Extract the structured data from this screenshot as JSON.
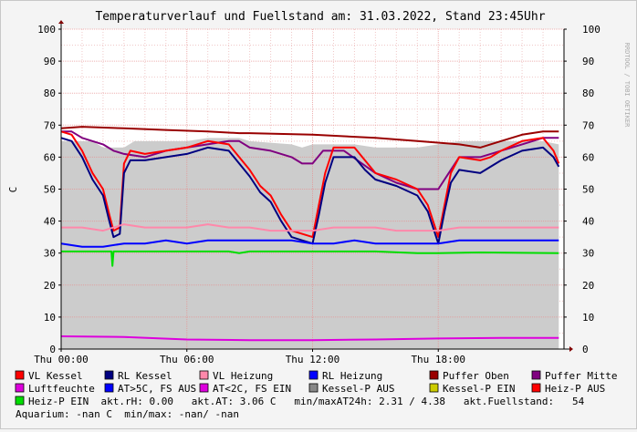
{
  "chart_data": {
    "type": "area",
    "title": "Temperaturverlauf und Fuellstand am: 31.03.2022, Stand 23:45Uhr",
    "watermark": "RRDTOOL / TOBI OETIKER",
    "ylabel": "C",
    "ylim": [
      0,
      100
    ],
    "xlim": [
      0,
      24
    ],
    "y_ticks": [
      0,
      10,
      20,
      30,
      40,
      50,
      60,
      70,
      80,
      90,
      100
    ],
    "x_ticks": [
      {
        "x": 0,
        "label": "Thu 00:00"
      },
      {
        "x": 6,
        "label": "Thu 06:00"
      },
      {
        "x": 12,
        "label": "Thu 12:00"
      },
      {
        "x": 18,
        "label": "Thu 18:00"
      }
    ],
    "grid": true,
    "legend_position": "bottom",
    "series": [
      {
        "name": "Kessel-P AUS",
        "kind": "area",
        "color": "#cccccc",
        "points": [
          [
            0,
            65
          ],
          [
            1.5,
            65
          ],
          [
            2,
            63
          ],
          [
            3,
            63
          ],
          [
            3.5,
            65
          ],
          [
            6,
            65
          ],
          [
            7,
            66
          ],
          [
            8.5,
            66
          ],
          [
            9,
            65
          ],
          [
            11,
            64
          ],
          [
            11.5,
            63
          ],
          [
            12,
            64
          ],
          [
            13,
            64
          ],
          [
            14,
            64
          ],
          [
            15,
            63
          ],
          [
            16,
            63
          ],
          [
            17,
            63
          ],
          [
            18,
            64
          ],
          [
            19,
            65
          ],
          [
            20,
            65
          ],
          [
            21,
            65
          ],
          [
            22,
            65
          ],
          [
            23,
            65
          ],
          [
            23.75,
            64
          ]
        ]
      },
      {
        "name": "Puffer Oben",
        "kind": "line",
        "color": "#990000",
        "points": [
          [
            0,
            69
          ],
          [
            1,
            69.5
          ],
          [
            3,
            69
          ],
          [
            5,
            68.5
          ],
          [
            7,
            68
          ],
          [
            8.5,
            67.5
          ],
          [
            9,
            67.5
          ],
          [
            12,
            67
          ],
          [
            15,
            66
          ],
          [
            17,
            65
          ],
          [
            19,
            64
          ],
          [
            20,
            63
          ],
          [
            21,
            65
          ],
          [
            22,
            67
          ],
          [
            23,
            68
          ],
          [
            23.75,
            68
          ]
        ]
      },
      {
        "name": "Puffer Mitte",
        "kind": "line",
        "color": "#800080",
        "points": [
          [
            0,
            68
          ],
          [
            0.5,
            68
          ],
          [
            1,
            66
          ],
          [
            2,
            64
          ],
          [
            2.5,
            62
          ],
          [
            3,
            61
          ],
          [
            4,
            60
          ],
          [
            5,
            62
          ],
          [
            6,
            63
          ],
          [
            8,
            65
          ],
          [
            8.5,
            65
          ],
          [
            9,
            63
          ],
          [
            10,
            62
          ],
          [
            11,
            60
          ],
          [
            11.5,
            58
          ],
          [
            12,
            58
          ],
          [
            12.5,
            62
          ],
          [
            13.5,
            62
          ],
          [
            15,
            55
          ],
          [
            16,
            52
          ],
          [
            17,
            50
          ],
          [
            18,
            50
          ],
          [
            18.5,
            55
          ],
          [
            19,
            60
          ],
          [
            20,
            60
          ],
          [
            21,
            62
          ],
          [
            22,
            64
          ],
          [
            23,
            66
          ],
          [
            23.75,
            66
          ]
        ]
      },
      {
        "name": "VL Kessel",
        "kind": "line",
        "color": "#ff0000",
        "points": [
          [
            0,
            68
          ],
          [
            0.5,
            67
          ],
          [
            1,
            62
          ],
          [
            1.5,
            55
          ],
          [
            2,
            50
          ],
          [
            2.3,
            42
          ],
          [
            2.5,
            37
          ],
          [
            2.8,
            38
          ],
          [
            3.0,
            58
          ],
          [
            3.3,
            62
          ],
          [
            4,
            61
          ],
          [
            5,
            62
          ],
          [
            6,
            63
          ],
          [
            7,
            65
          ],
          [
            8,
            64
          ],
          [
            8.5,
            60
          ],
          [
            9,
            56
          ],
          [
            9.5,
            51
          ],
          [
            10,
            48
          ],
          [
            10.5,
            42
          ],
          [
            11,
            37
          ],
          [
            11.5,
            36
          ],
          [
            12,
            35
          ],
          [
            12.3,
            45
          ],
          [
            12.6,
            55
          ],
          [
            13,
            63
          ],
          [
            14,
            63
          ],
          [
            14.5,
            59
          ],
          [
            15,
            55
          ],
          [
            16,
            53
          ],
          [
            17,
            50
          ],
          [
            17.5,
            45
          ],
          [
            18,
            35
          ],
          [
            18.3,
            45
          ],
          [
            18.6,
            55
          ],
          [
            19,
            60
          ],
          [
            20,
            59
          ],
          [
            20.5,
            60
          ],
          [
            21,
            62
          ],
          [
            22,
            65
          ],
          [
            23,
            66
          ],
          [
            23.5,
            62
          ],
          [
            23.75,
            58
          ]
        ]
      },
      {
        "name": "RL Kessel",
        "kind": "line",
        "color": "#000080",
        "points": [
          [
            0,
            66
          ],
          [
            0.5,
            65
          ],
          [
            1,
            60
          ],
          [
            1.5,
            53
          ],
          [
            2,
            48
          ],
          [
            2.3,
            40
          ],
          [
            2.5,
            35
          ],
          [
            2.8,
            36
          ],
          [
            3.0,
            55
          ],
          [
            3.3,
            59
          ],
          [
            4,
            59
          ],
          [
            5,
            60
          ],
          [
            6,
            61
          ],
          [
            7,
            63
          ],
          [
            8,
            62
          ],
          [
            8.5,
            58
          ],
          [
            9,
            54
          ],
          [
            9.5,
            49
          ],
          [
            10,
            46
          ],
          [
            10.5,
            40
          ],
          [
            11,
            35
          ],
          [
            11.5,
            34
          ],
          [
            12,
            33
          ],
          [
            12.3,
            42
          ],
          [
            12.6,
            52
          ],
          [
            13,
            60
          ],
          [
            14,
            60
          ],
          [
            14.5,
            56
          ],
          [
            15,
            53
          ],
          [
            16,
            51
          ],
          [
            17,
            48
          ],
          [
            17.5,
            43
          ],
          [
            18,
            33
          ],
          [
            18.3,
            43
          ],
          [
            18.6,
            52
          ],
          [
            19,
            56
          ],
          [
            20,
            55
          ],
          [
            20.5,
            57
          ],
          [
            21,
            59
          ],
          [
            22,
            62
          ],
          [
            23,
            63
          ],
          [
            23.5,
            60
          ],
          [
            23.75,
            57
          ]
        ]
      },
      {
        "name": "VL Heizung",
        "kind": "line",
        "color": "#ff88aa",
        "points": [
          [
            0,
            38
          ],
          [
            1,
            38
          ],
          [
            2,
            37
          ],
          [
            3,
            39
          ],
          [
            4,
            38
          ],
          [
            5,
            38
          ],
          [
            6,
            38
          ],
          [
            7,
            39
          ],
          [
            8,
            38
          ],
          [
            9,
            38
          ],
          [
            10,
            37
          ],
          [
            11,
            37
          ],
          [
            12,
            37
          ],
          [
            13,
            38
          ],
          [
            14,
            38
          ],
          [
            15,
            38
          ],
          [
            16,
            37
          ],
          [
            17,
            37
          ],
          [
            18,
            37
          ],
          [
            19,
            38
          ],
          [
            20,
            38
          ],
          [
            21,
            38
          ],
          [
            22,
            38
          ],
          [
            23,
            38
          ],
          [
            23.75,
            38
          ]
        ]
      },
      {
        "name": "RL Heizung",
        "kind": "line",
        "color": "#0000ff",
        "points": [
          [
            0,
            33
          ],
          [
            1,
            32
          ],
          [
            2,
            32
          ],
          [
            3,
            33
          ],
          [
            4,
            33
          ],
          [
            5,
            34
          ],
          [
            6,
            33
          ],
          [
            7,
            34
          ],
          [
            8,
            34
          ],
          [
            9,
            34
          ],
          [
            10,
            34
          ],
          [
            11,
            34
          ],
          [
            12,
            33
          ],
          [
            13,
            33
          ],
          [
            14,
            34
          ],
          [
            15,
            33
          ],
          [
            16,
            33
          ],
          [
            17,
            33
          ],
          [
            18,
            33
          ],
          [
            19,
            34
          ],
          [
            20,
            34
          ],
          [
            21,
            34
          ],
          [
            22,
            34
          ],
          [
            23,
            34
          ],
          [
            23.75,
            34
          ]
        ]
      },
      {
        "name": "Heiz-P EIN",
        "kind": "line",
        "color": "#00dd00",
        "points": [
          [
            0,
            30.5
          ],
          [
            2,
            30.5
          ],
          [
            2.4,
            30.5
          ],
          [
            2.45,
            26
          ],
          [
            2.5,
            30.5
          ],
          [
            5,
            30.5
          ],
          [
            8,
            30.5
          ],
          [
            8.5,
            30
          ],
          [
            9,
            30.5
          ],
          [
            12,
            30.5
          ],
          [
            15,
            30.5
          ],
          [
            17,
            30
          ],
          [
            18,
            30
          ],
          [
            20,
            30.2
          ],
          [
            23.75,
            30
          ]
        ]
      },
      {
        "name": "Luftfeuchte",
        "kind": "line",
        "color": "#dd00dd",
        "points": [
          [
            0,
            4
          ],
          [
            3,
            3.8
          ],
          [
            6,
            3
          ],
          [
            9,
            2.8
          ],
          [
            12,
            2.8
          ],
          [
            15,
            3
          ],
          [
            18,
            3.3
          ],
          [
            21,
            3.5
          ],
          [
            23.75,
            3.5
          ]
        ]
      }
    ]
  },
  "legend": {
    "row1": [
      {
        "label": "VL Kessel",
        "color": "#ff0000"
      },
      {
        "label": "RL Kessel",
        "color": "#000080"
      },
      {
        "label": "VL Heizung",
        "color": "#ff88aa"
      },
      {
        "label": "RL Heizung",
        "color": "#0000ff"
      },
      {
        "label": "Puffer Oben",
        "color": "#990000"
      },
      {
        "label": "Puffer Mitte",
        "color": "#800080"
      }
    ],
    "row2": [
      {
        "label": "Luftfeuchte",
        "color": "#dd00dd"
      },
      {
        "label": "AT>5C, FS AUS",
        "color": "#0000ff"
      },
      {
        "label": "AT<2C, FS EIN",
        "color": "#dd00dd"
      },
      {
        "label": "Kessel-P AUS",
        "color": "#888888"
      },
      {
        "label": "Kessel-P EIN",
        "color": "#cccc00"
      },
      {
        "label": "Heiz-P AUS",
        "color": "#ff0000"
      }
    ],
    "row3_swatch": {
      "label": "Heiz-P EIN",
      "color": "#00dd00"
    },
    "row3_text": "  akt.rH: 0.00   akt.AT: 3.06 C   min/maxAT24h: 2.31 / 4.38   akt.Fuellstand:   54",
    "row4_text": "Aquarium: -nan C  min/max: -nan/ -nan"
  }
}
